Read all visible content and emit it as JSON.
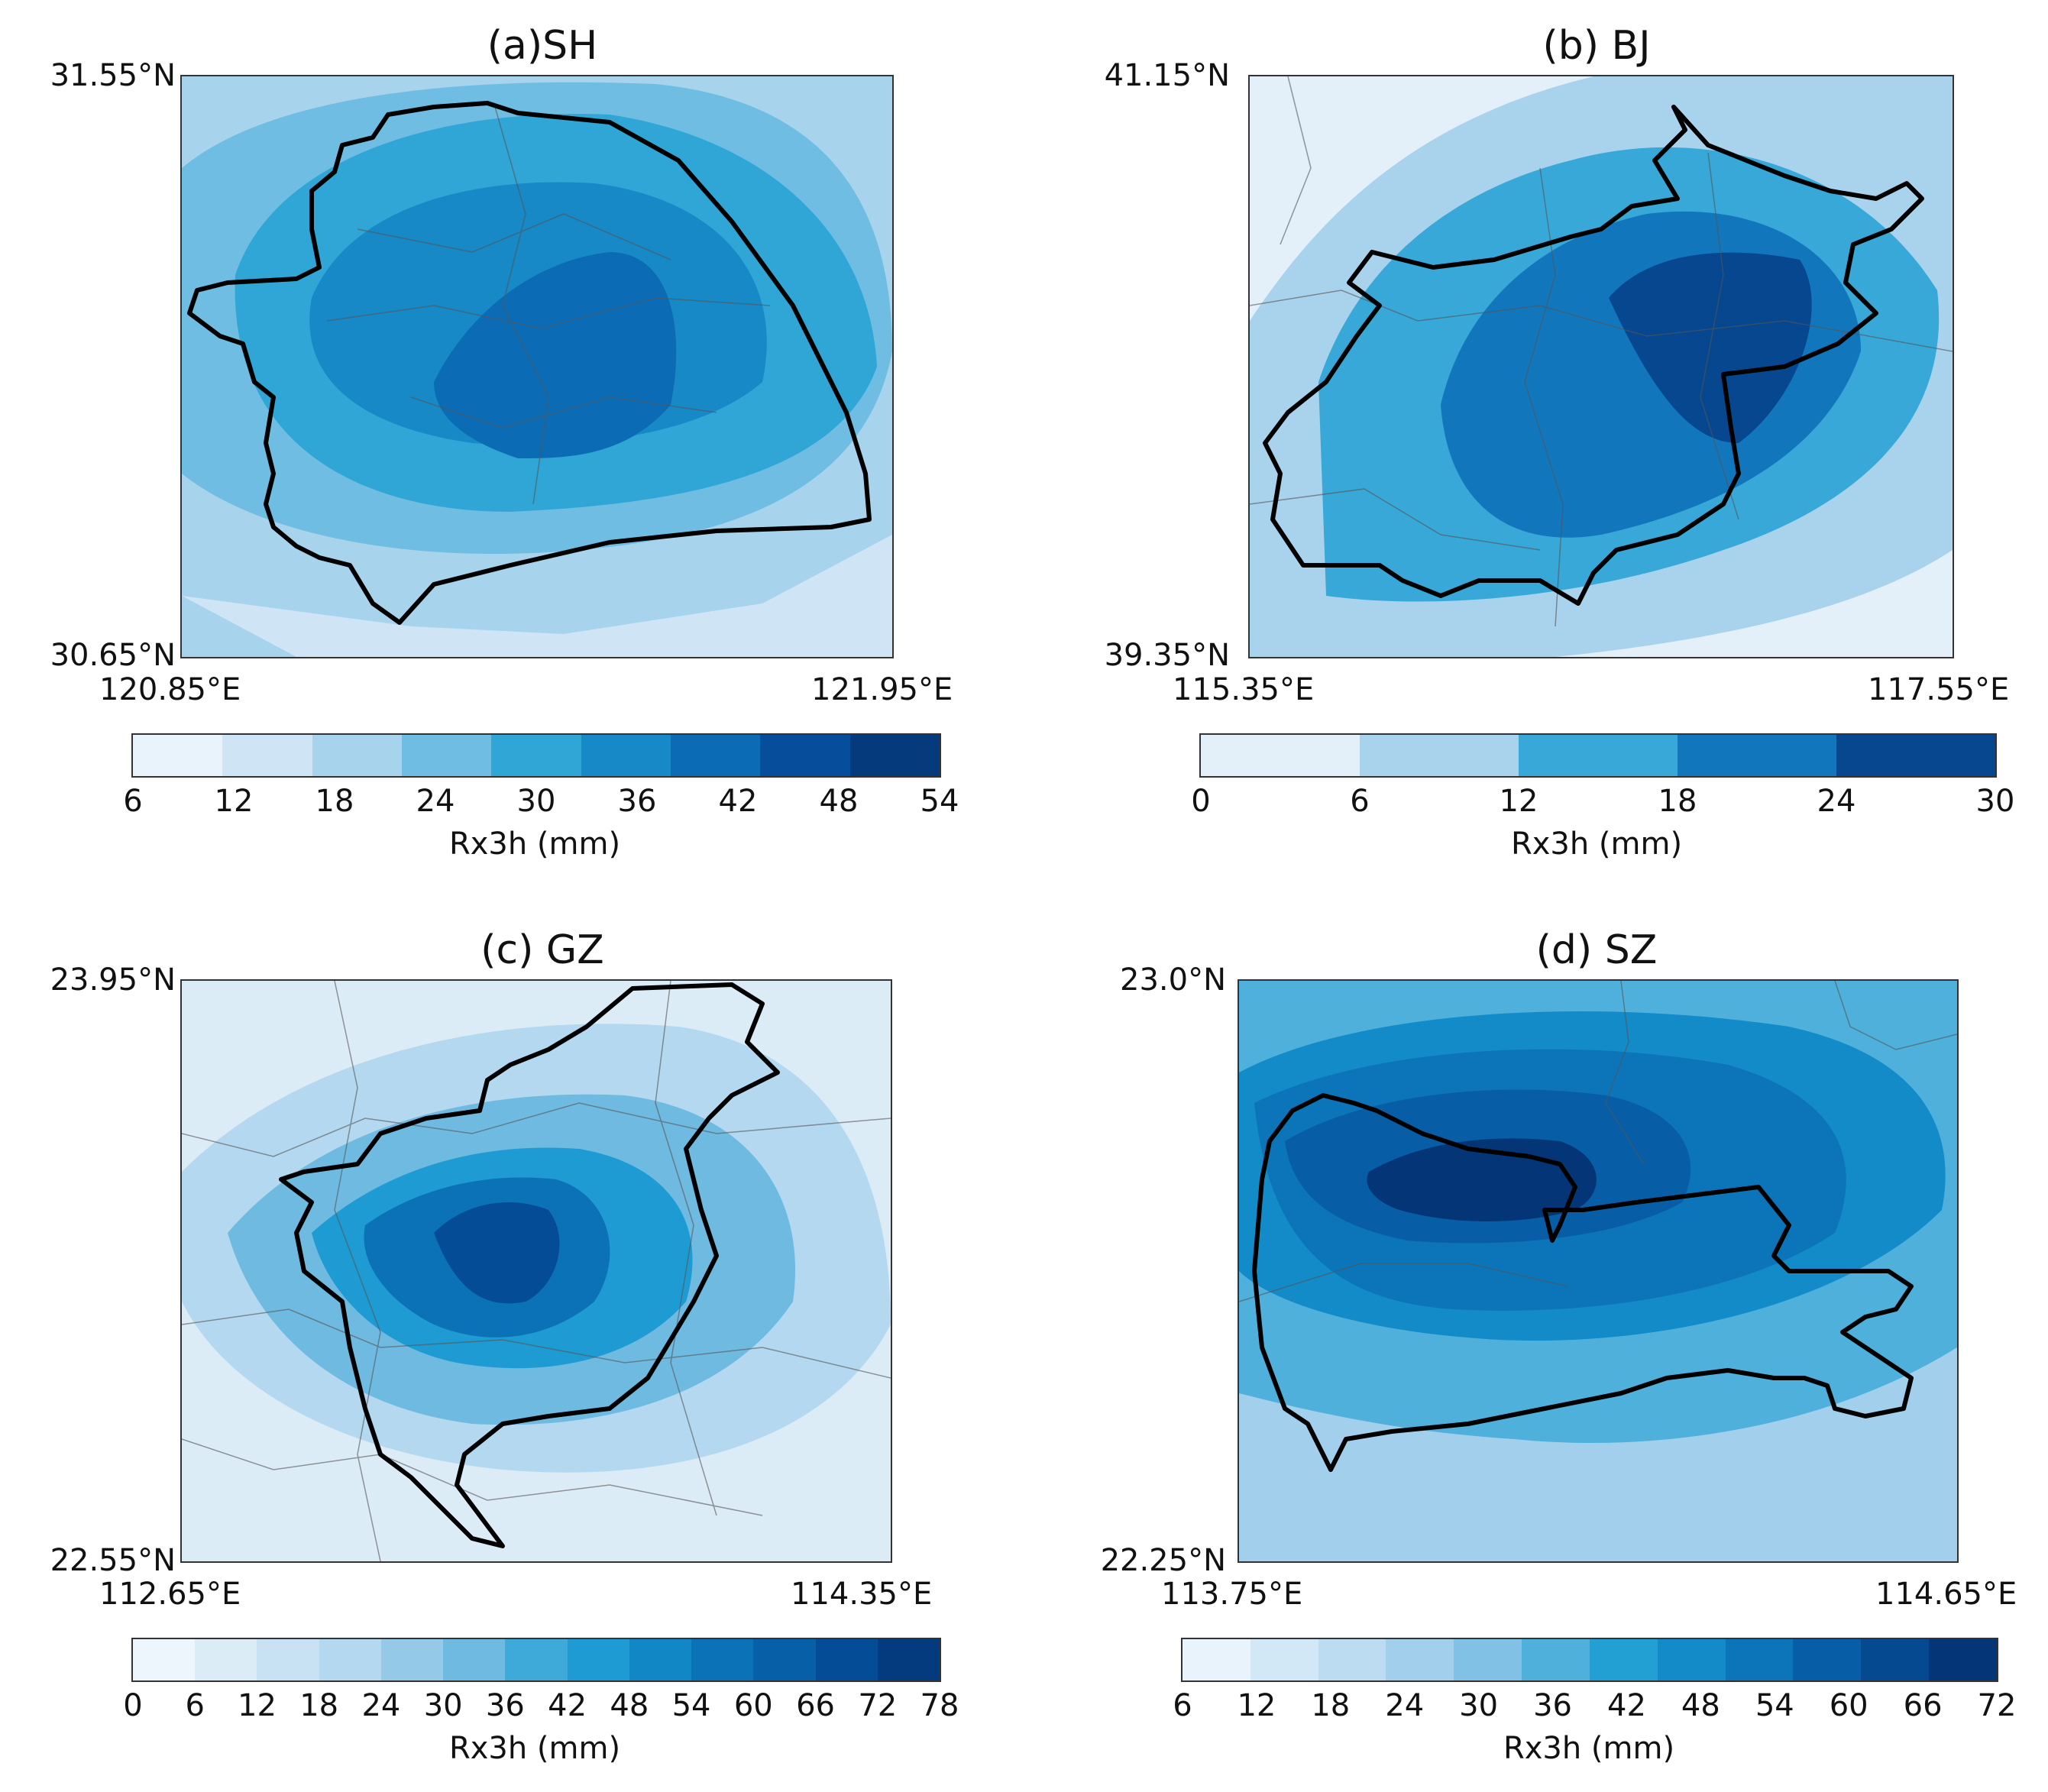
{
  "panels": [
    {
      "id": "a",
      "title": "(a)SH",
      "lat_top": "31.55°N",
      "lat_bottom": "30.65°N",
      "lon_left": "120.85°E",
      "lon_right": "121.95°E",
      "colorbar": {
        "ticks": [
          "6",
          "12",
          "18",
          "24",
          "30",
          "36",
          "42",
          "48",
          "54"
        ],
        "colors": [
          "#e8f3fb",
          "#cfe5f5",
          "#a8d3ec",
          "#6fbde3",
          "#2fa6d6",
          "#1689c6",
          "#0b6cb5",
          "#064e9b",
          "#053a7d"
        ],
        "label": "Rx3h (mm)"
      },
      "field": [
        {
          "level": 3,
          "shape": "bg"
        },
        {
          "level": 4,
          "shape": "outer"
        },
        {
          "level": 5,
          "shape": "mid"
        },
        {
          "level": 6,
          "shape": "core"
        }
      ]
    },
    {
      "id": "b",
      "title": "(b) BJ",
      "lat_top": "41.15°N",
      "lat_bottom": "39.35°N",
      "lon_left": "115.35°E",
      "lon_right": "117.55°E",
      "colorbar": {
        "ticks": [
          "0",
          "6",
          "12",
          "18",
          "24",
          "30"
        ],
        "colors": [
          "#e3f0fa",
          "#a9d3ec",
          "#37a8d8",
          "#1176bc",
          "#06478f"
        ],
        "label": "Rx3h (mm)"
      },
      "field": [
        {
          "level": 0,
          "shape": "bg"
        },
        {
          "level": 1,
          "shape": "outer"
        },
        {
          "level": 2,
          "shape": "mid"
        },
        {
          "level": 3,
          "shape": "core"
        },
        {
          "level": 4,
          "shape": "inner"
        }
      ]
    },
    {
      "id": "c",
      "title": "(c) GZ",
      "lat_top": "23.95°N",
      "lat_bottom": "22.55°N",
      "lon_left": "112.65°E",
      "lon_right": "114.35°E",
      "colorbar": {
        "ticks": [
          "0",
          "6",
          "12",
          "18",
          "24",
          "30",
          "36",
          "42",
          "48",
          "54",
          "60",
          "66",
          "72",
          "78"
        ],
        "colors": [
          "#edf6fc",
          "#dcecf7",
          "#c9e2f3",
          "#b3d8ef",
          "#94cae8",
          "#6fbae1",
          "#3eaad9",
          "#1e9bd2",
          "#1187c6",
          "#0b72b8",
          "#075fa8",
          "#054c96",
          "#043b7e"
        ],
        "label": "Rx3h (mm)"
      },
      "field": [
        {
          "level": 1,
          "shape": "bg"
        },
        {
          "level": 3,
          "shape": "outer"
        },
        {
          "level": 6,
          "shape": "mid"
        },
        {
          "level": 9,
          "shape": "core"
        },
        {
          "level": 11,
          "shape": "inner"
        }
      ]
    },
    {
      "id": "d",
      "title": "(d) SZ",
      "lat_top": "23.0°N",
      "lat_bottom": "22.25°N",
      "lon_left": "113.75°E",
      "lon_right": "114.65°E",
      "colorbar": {
        "ticks": [
          "6",
          "12",
          "18",
          "24",
          "30",
          "36",
          "42",
          "48",
          "54",
          "60",
          "66",
          "72"
        ],
        "colors": [
          "#e8f3fb",
          "#d3e8f6",
          "#bcdcf1",
          "#a2d0ec",
          "#80c1e5",
          "#4fb0dc",
          "#22a0d4",
          "#138bc8",
          "#0c74b9",
          "#075ea6",
          "#054a91",
          "#043677"
        ],
        "label": "Rx3h (mm)"
      },
      "field": [
        {
          "level": 3,
          "shape": "bg"
        },
        {
          "level": 5,
          "shape": "outer"
        },
        {
          "level": 7,
          "shape": "mid"
        },
        {
          "level": 8,
          "shape": "core"
        },
        {
          "level": 9,
          "shape": "inner"
        },
        {
          "level": 10,
          "shape": "peak"
        }
      ]
    }
  ]
}
